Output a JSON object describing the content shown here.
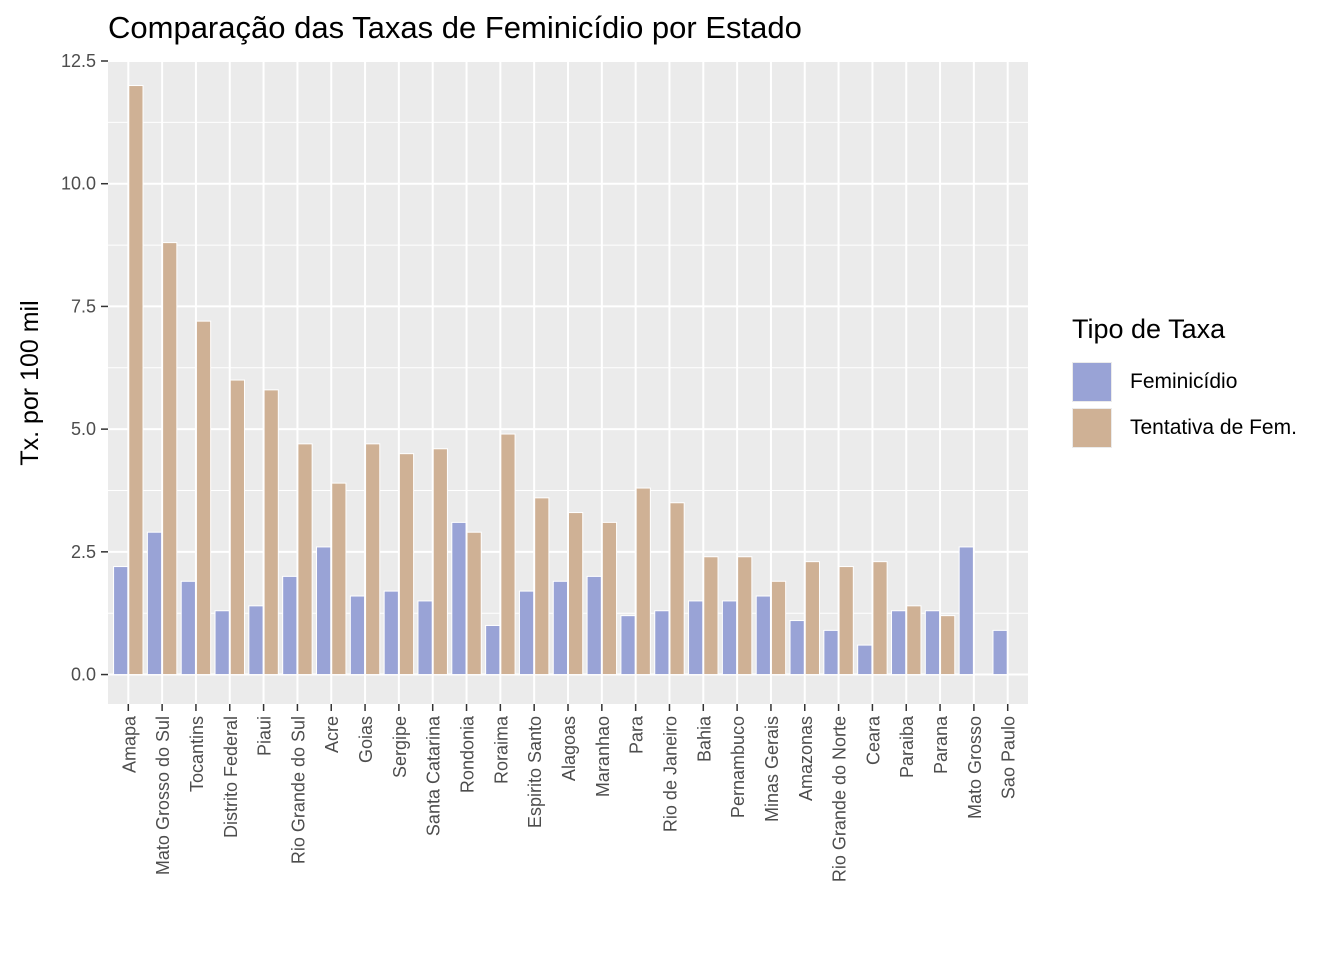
{
  "chart_data": {
    "type": "bar",
    "title": "Comparação das Taxas de Feminicídio por Estado",
    "xlabel": "",
    "ylabel": "Tx. por 100 mil",
    "ylim": [
      -0.6,
      12.5
    ],
    "yticks": [
      "0.0",
      "2.5",
      "5.0",
      "7.5",
      "10.0",
      "12.5"
    ],
    "grid": true,
    "legend_position": "right",
    "legend_title": "Tipo de Taxa",
    "categories": [
      "Amapa",
      "Mato Grosso do Sul",
      "Tocantins",
      "Distrito Federal",
      "Piaui",
      "Rio Grande do Sul",
      "Acre",
      "Goias",
      "Sergipe",
      "Santa Catarina",
      "Rondonia",
      "Roraima",
      "Espirito Santo",
      "Alagoas",
      "Maranhao",
      "Para",
      "Rio de Janeiro",
      "Bahia",
      "Pernambuco",
      "Minas Gerais",
      "Amazonas",
      "Rio Grande do Norte",
      "Ceara",
      "Paraiba",
      "Parana",
      "Mato Grosso",
      "Sao Paulo"
    ],
    "series": [
      {
        "name": "Feminicídio",
        "color": "#99A3D6",
        "values": [
          2.2,
          2.9,
          1.9,
          1.3,
          1.4,
          2.0,
          2.6,
          1.6,
          1.7,
          1.5,
          3.1,
          1.0,
          1.7,
          1.9,
          2.0,
          1.2,
          1.3,
          1.5,
          1.5,
          1.6,
          1.1,
          0.9,
          0.6,
          1.3,
          1.3,
          2.6,
          0.9
        ]
      },
      {
        "name": "Tentativa de Fem.",
        "color": "#CFB195",
        "values": [
          12.0,
          8.8,
          7.2,
          6.0,
          5.8,
          4.7,
          3.9,
          4.7,
          4.5,
          4.6,
          2.9,
          4.9,
          3.6,
          3.3,
          3.1,
          3.8,
          3.5,
          2.4,
          2.4,
          1.9,
          2.3,
          2.2,
          2.3,
          1.4,
          1.2,
          null,
          null
        ]
      }
    ]
  }
}
